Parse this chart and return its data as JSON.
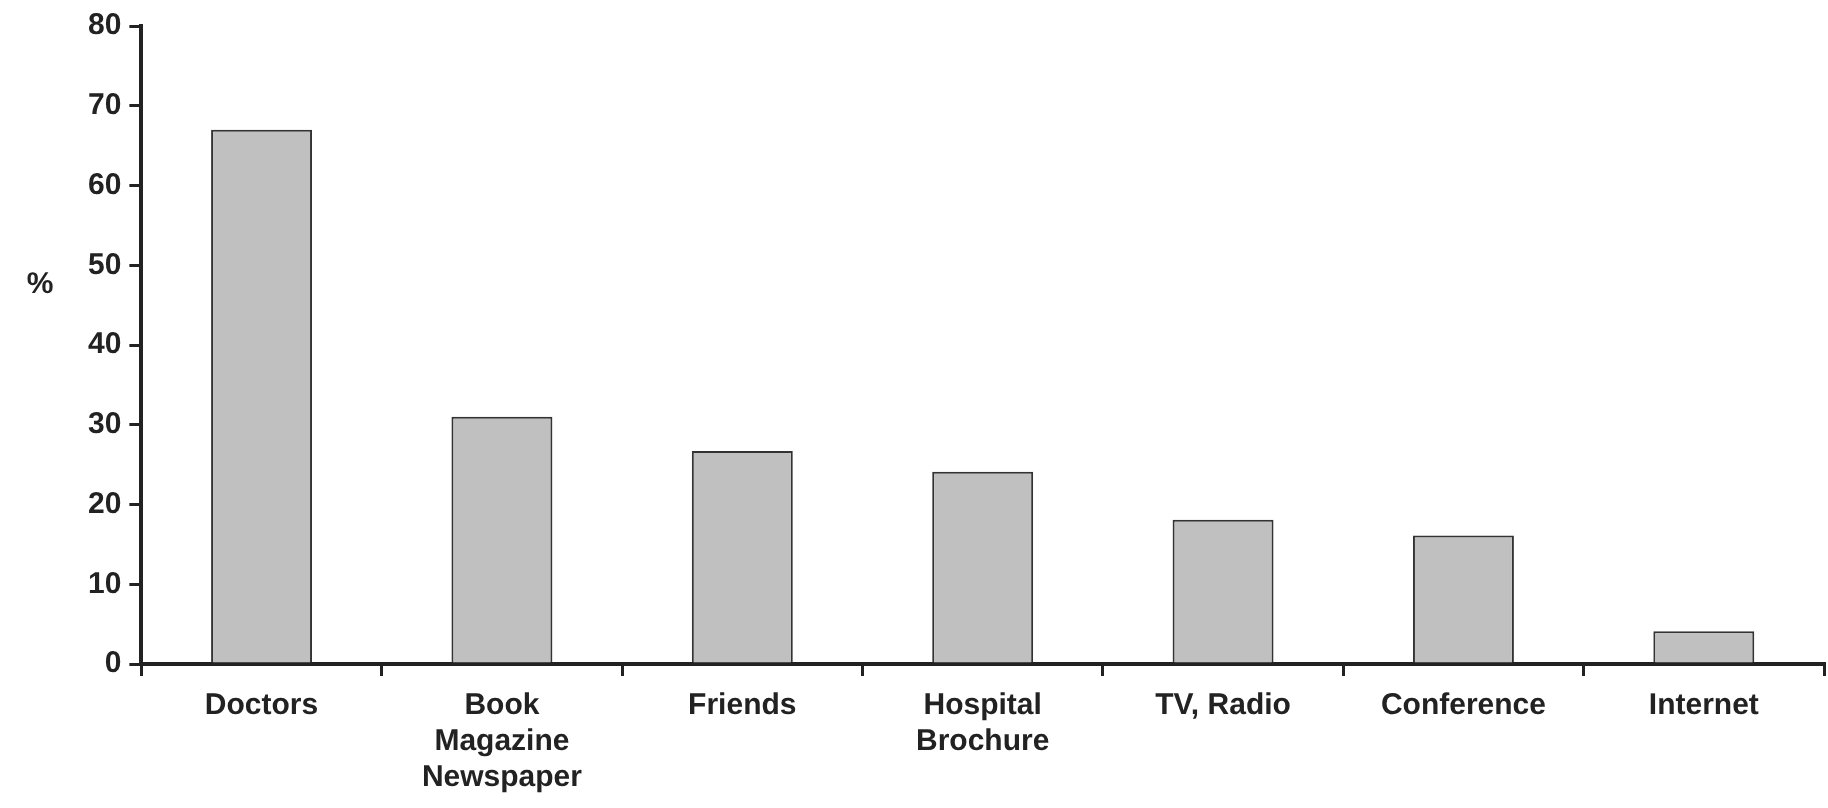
{
  "chart_data": {
    "type": "bar",
    "ylabel": "%",
    "categories": [
      "Doctors",
      "Book\nMagazine\nNewspaper",
      "Friends",
      "Hospital\nBrochure",
      "TV, Radio",
      "Conference",
      "Internet"
    ],
    "values": [
      67,
      31,
      26.7,
      24.1,
      18.1,
      16.1,
      4.1
    ],
    "color": "#c0c0c0",
    "ylim": [
      0,
      80
    ],
    "yticks": [
      0,
      10,
      20,
      30,
      40,
      50,
      60,
      70,
      80
    ],
    "grid": false,
    "legend": false
  }
}
